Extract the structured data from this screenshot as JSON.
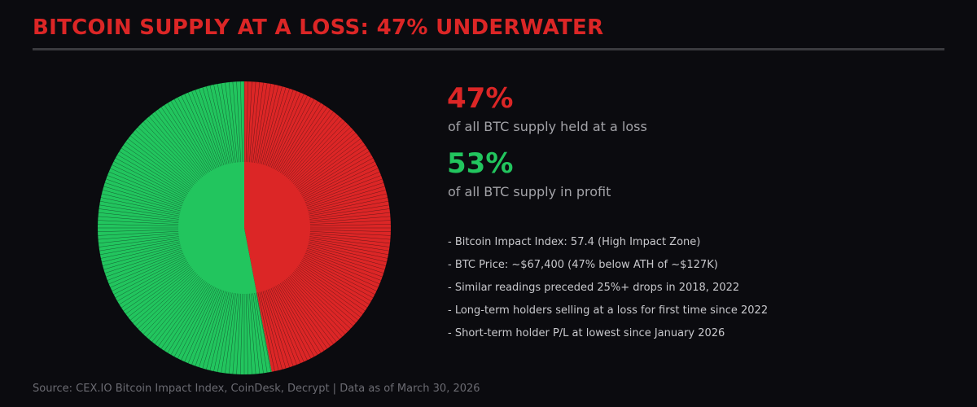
{
  "title": "BITCOIN SUPPLY AT A LOSS: 47% UNDERWATER",
  "colors": {
    "background": "#0b0b0f",
    "loss": "#dc2626",
    "profit": "#22c55e",
    "divider": "#3a3a3e",
    "label": "#a3a3a8",
    "bullet": "#c8c8cc",
    "source": "#6b6b72"
  },
  "stats": [
    {
      "value": "47%",
      "label": "of all BTC supply held at a loss",
      "color": "#dc2626"
    },
    {
      "value": "53%",
      "label": "of all BTC supply in profit",
      "color": "#22c55e"
    }
  ],
  "bullets": [
    "- Bitcoin Impact Index: 57.4 (High Impact Zone)",
    "- BTC Price: ~$67,400 (47% below ATH of ~$127K)",
    "- Similar readings preceded 25%+ drops in 2018, 2022",
    "- Long-term holders selling at a loss for first time since 2022",
    "- Short-term holder P/L at lowest since January 2026"
  ],
  "source": "Source: CEX.IO Bitcoin Impact Index, CoinDesk, Decrypt | Data as of March 30, 2026",
  "chart_data": {
    "type": "pie",
    "title": "BITCOIN SUPPLY AT A LOSS: 47% UNDERWATER",
    "categories": [
      "At a loss",
      "In profit"
    ],
    "values": [
      47,
      53
    ],
    "colors": [
      "#dc2626",
      "#22c55e"
    ],
    "start_angle": "12 o'clock, clockwise",
    "legend": "none (values annotated to the right)"
  }
}
